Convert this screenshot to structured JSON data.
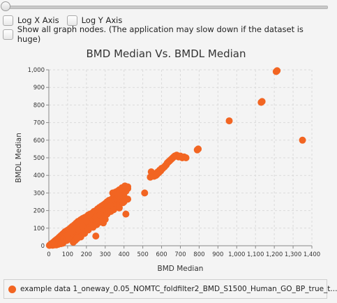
{
  "controls": {
    "log_x_label": "Log X Axis",
    "log_y_label": "Log Y Axis",
    "show_all_label": "Show all graph nodes.  (The application may slow down if the dataset is huge)"
  },
  "chart_data": {
    "type": "scatter",
    "title": "BMD Median Vs. BMDL Median",
    "xlabel": "BMD Median",
    "ylabel": "BMDL Median",
    "xlim": [
      0,
      1400
    ],
    "ylim": [
      0,
      1000
    ],
    "xticks": [
      "0",
      "100",
      "200",
      "300",
      "400",
      "500",
      "600",
      "700",
      "800",
      "900",
      "1,000",
      "1,100",
      "1,200",
      "1,300",
      "1,400"
    ],
    "yticks": [
      "0",
      "100",
      "200",
      "300",
      "400",
      "500",
      "600",
      "700",
      "800",
      "900",
      "1,000"
    ],
    "grid": true,
    "color": "#f26522",
    "series": [
      {
        "name": "example data 1_oneway_0.05_NOMTC_foldfilter2_BMD_S1500_Human_GO_BP_true_t...",
        "points": [
          [
            3,
            2
          ],
          [
            5,
            4
          ],
          [
            8,
            6
          ],
          [
            10,
            8
          ],
          [
            12,
            10
          ],
          [
            15,
            12
          ],
          [
            18,
            14
          ],
          [
            20,
            16
          ],
          [
            22,
            18
          ],
          [
            25,
            20
          ],
          [
            28,
            22
          ],
          [
            30,
            25
          ],
          [
            33,
            28
          ],
          [
            35,
            30
          ],
          [
            38,
            32
          ],
          [
            40,
            34
          ],
          [
            43,
            36
          ],
          [
            45,
            38
          ],
          [
            48,
            40
          ],
          [
            50,
            42
          ],
          [
            53,
            45
          ],
          [
            55,
            48
          ],
          [
            58,
            50
          ],
          [
            60,
            52
          ],
          [
            63,
            55
          ],
          [
            65,
            58
          ],
          [
            68,
            60
          ],
          [
            70,
            62
          ],
          [
            73,
            65
          ],
          [
            75,
            68
          ],
          [
            78,
            70
          ],
          [
            80,
            72
          ],
          [
            83,
            75
          ],
          [
            85,
            78
          ],
          [
            88,
            80
          ],
          [
            90,
            82
          ],
          [
            95,
            85
          ],
          [
            100,
            88
          ],
          [
            105,
            92
          ],
          [
            110,
            95
          ],
          [
            115,
            100
          ],
          [
            120,
            105
          ],
          [
            125,
            110
          ],
          [
            130,
            112
          ],
          [
            135,
            118
          ],
          [
            140,
            122
          ],
          [
            145,
            128
          ],
          [
            150,
            132
          ],
          [
            155,
            138
          ],
          [
            160,
            140
          ],
          [
            170,
            148
          ],
          [
            180,
            155
          ],
          [
            190,
            160
          ],
          [
            200,
            165
          ],
          [
            210,
            175
          ],
          [
            220,
            180
          ],
          [
            230,
            185
          ],
          [
            240,
            195
          ],
          [
            250,
            200
          ],
          [
            260,
            210
          ],
          [
            270,
            218
          ],
          [
            280,
            225
          ],
          [
            290,
            232
          ],
          [
            300,
            240
          ],
          [
            310,
            250
          ],
          [
            320,
            258
          ],
          [
            330,
            262
          ],
          [
            340,
            270
          ],
          [
            350,
            280
          ],
          [
            360,
            290
          ],
          [
            370,
            298
          ],
          [
            380,
            305
          ],
          [
            390,
            310
          ],
          [
            400,
            320
          ],
          [
            410,
            328
          ],
          [
            420,
            335
          ],
          [
            15,
            5
          ],
          [
            25,
            10
          ],
          [
            35,
            15
          ],
          [
            45,
            22
          ],
          [
            55,
            28
          ],
          [
            65,
            35
          ],
          [
            75,
            42
          ],
          [
            85,
            50
          ],
          [
            95,
            55
          ],
          [
            105,
            62
          ],
          [
            115,
            70
          ],
          [
            125,
            75
          ],
          [
            135,
            82
          ],
          [
            60,
            20
          ],
          [
            70,
            30
          ],
          [
            80,
            38
          ],
          [
            90,
            45
          ],
          [
            110,
            58
          ],
          [
            130,
            68
          ],
          [
            150,
            80
          ],
          [
            170,
            95
          ],
          [
            190,
            105
          ],
          [
            210,
            120
          ],
          [
            230,
            135
          ],
          [
            250,
            150
          ],
          [
            270,
            160
          ],
          [
            290,
            178
          ],
          [
            310,
            190
          ],
          [
            330,
            205
          ],
          [
            350,
            220
          ],
          [
            200,
            145
          ],
          [
            220,
            160
          ],
          [
            240,
            175
          ],
          [
            260,
            185
          ],
          [
            280,
            195
          ],
          [
            300,
            205
          ],
          [
            320,
            220
          ],
          [
            340,
            235
          ],
          [
            360,
            250
          ],
          [
            380,
            265
          ],
          [
            400,
            280
          ],
          [
            40,
            5
          ],
          [
            50,
            8
          ],
          [
            20,
            3
          ],
          [
            30,
            5
          ],
          [
            80,
            25
          ],
          [
            100,
            35
          ],
          [
            120,
            45
          ],
          [
            140,
            55
          ],
          [
            160,
            65
          ],
          [
            180,
            78
          ],
          [
            100,
            60
          ],
          [
            120,
            80
          ],
          [
            140,
            100
          ],
          [
            160,
            120
          ],
          [
            180,
            130
          ],
          [
            200,
            140
          ],
          [
            160,
            90
          ],
          [
            180,
            110
          ],
          [
            210,
            100
          ],
          [
            230,
            115
          ],
          [
            250,
            130
          ],
          [
            270,
            140
          ],
          [
            250,
            160
          ],
          [
            270,
            175
          ],
          [
            290,
            190
          ],
          [
            310,
            200
          ],
          [
            330,
            215
          ],
          [
            290,
            155
          ],
          [
            300,
            170
          ],
          [
            310,
            180
          ],
          [
            320,
            195
          ],
          [
            330,
            230
          ],
          [
            340,
            250
          ],
          [
            350,
            260
          ],
          [
            360,
            270
          ],
          [
            370,
            285
          ],
          [
            380,
            290
          ],
          [
            400,
            300
          ],
          [
            410,
            310
          ],
          [
            420,
            325
          ],
          [
            340,
            300
          ],
          [
            355,
            305
          ],
          [
            365,
            310
          ],
          [
            375,
            318
          ],
          [
            390,
            330
          ],
          [
            405,
            340
          ],
          [
            410,
            180
          ],
          [
            360,
            230
          ],
          [
            380,
            240
          ],
          [
            400,
            250
          ],
          [
            250,
            55
          ],
          [
            290,
            130
          ],
          [
            300,
            150
          ],
          [
            150,
            40
          ],
          [
            170,
            50
          ],
          [
            190,
            70
          ],
          [
            210,
            90
          ],
          [
            235,
            105
          ],
          [
            255,
            120
          ],
          [
            275,
            135
          ],
          [
            95,
            30
          ],
          [
            105,
            40
          ],
          [
            75,
            15
          ],
          [
            65,
            12
          ],
          [
            130,
            20
          ],
          [
            140,
            30
          ],
          [
            150,
            45
          ],
          [
            330,
            195
          ],
          [
            345,
            205
          ],
          [
            375,
            215
          ],
          [
            395,
            245
          ],
          [
            420,
            265
          ],
          [
            510,
            300
          ],
          [
            540,
            390
          ],
          [
            545,
            420
          ],
          [
            560,
            410
          ],
          [
            570,
            400
          ],
          [
            580,
            420
          ],
          [
            590,
            430
          ],
          [
            600,
            440
          ],
          [
            610,
            445
          ],
          [
            620,
            455
          ],
          [
            630,
            470
          ],
          [
            640,
            480
          ],
          [
            650,
            490
          ],
          [
            660,
            500
          ],
          [
            670,
            510
          ],
          [
            680,
            515
          ],
          [
            690,
            505
          ],
          [
            700,
            510
          ],
          [
            710,
            500
          ],
          [
            720,
            505
          ],
          [
            730,
            500
          ],
          [
            560,
            395
          ],
          [
            575,
            405
          ],
          [
            585,
            415
          ],
          [
            595,
            425
          ],
          [
            605,
            438
          ],
          [
            615,
            448
          ],
          [
            625,
            460
          ],
          [
            635,
            475
          ],
          [
            645,
            485
          ],
          [
            655,
            495
          ],
          [
            665,
            505
          ],
          [
            790,
            545
          ],
          [
            795,
            550
          ],
          [
            960,
            710
          ],
          [
            1130,
            815
          ],
          [
            1135,
            820
          ],
          [
            1210,
            990
          ],
          [
            1215,
            995
          ],
          [
            1350,
            600
          ]
        ]
      }
    ]
  }
}
